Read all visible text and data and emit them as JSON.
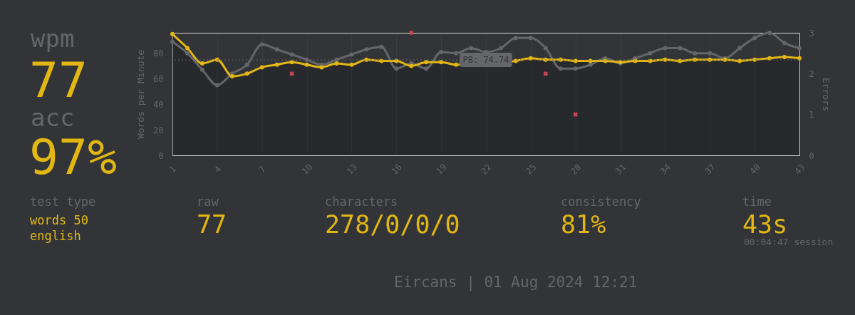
{
  "chart_data": [
    {
      "type": "other",
      "annotations": [
        "wpm",
        "77",
        "acc",
        "97%"
      ]
    },
    {
      "type": "line",
      "ylabel": "Words per Minute",
      "y2label": "Errors",
      "x": [
        1,
        2,
        3,
        4,
        5,
        6,
        7,
        8,
        9,
        10,
        11,
        12,
        13,
        14,
        15,
        16,
        17,
        18,
        19,
        20,
        21,
        22,
        23,
        24,
        25,
        26,
        27,
        28,
        29,
        30,
        31,
        32,
        33,
        34,
        35,
        36,
        37,
        38,
        39,
        40,
        41,
        42,
        43
      ],
      "xlim": [
        1,
        43
      ],
      "xticks": [
        1,
        4,
        7,
        10,
        13,
        16,
        19,
        22,
        25,
        28,
        31,
        34,
        37,
        40,
        43
      ],
      "ylim": [
        0,
        96
      ],
      "yticks": [
        0,
        20,
        40,
        60,
        80
      ],
      "y2lim": [
        0,
        3
      ],
      "y2ticks": [
        0,
        1,
        2,
        3
      ],
      "grid": "x",
      "marker": "circle",
      "line_style": "solid",
      "series": [
        {
          "type": "line",
          "color": "#646669",
          "values": [
            89,
            80,
            67,
            55,
            64,
            71,
            87,
            83,
            79,
            75,
            71,
            75,
            79,
            83,
            85,
            68,
            72,
            68,
            81,
            80,
            84,
            81,
            84,
            92,
            92,
            84,
            68,
            68,
            71,
            76,
            72,
            76,
            80,
            84,
            84,
            80,
            80,
            76,
            84,
            92,
            96,
            88,
            84
          ]
        },
        {
          "type": "area",
          "color": "#e2b714",
          "values": [
            95,
            84,
            72,
            75,
            62,
            64,
            69,
            71,
            73,
            71,
            69,
            72,
            71,
            75,
            74,
            74,
            70,
            73,
            73,
            71,
            null,
            null,
            null,
            74,
            76,
            75,
            75,
            74,
            74,
            74,
            73,
            74,
            74,
            75,
            74,
            75,
            75,
            75,
            74,
            75,
            76,
            77,
            76
          ]
        },
        {
          "type": "scatter",
          "axis": "y2",
          "marker": "cross",
          "color": "#ca4754",
          "x": [
            9,
            17,
            26,
            28
          ],
          "values": [
            2,
            3,
            2,
            1
          ]
        }
      ],
      "ref_lines": [
        {
          "axis": "y",
          "value": 74.74,
          "label": "PB: 74.74",
          "color": "#646669",
          "line_style": "dotted"
        }
      ]
    },
    {
      "type": "other",
      "annotations": [
        "test type",
        "words 50",
        "english",
        "raw",
        "77",
        "characters",
        "278/0/0/0",
        "consistency",
        "81%",
        "time",
        "43s",
        "00:04:47 session",
        "Eircans | 01 Aug 2024 12:21"
      ]
    }
  ]
}
